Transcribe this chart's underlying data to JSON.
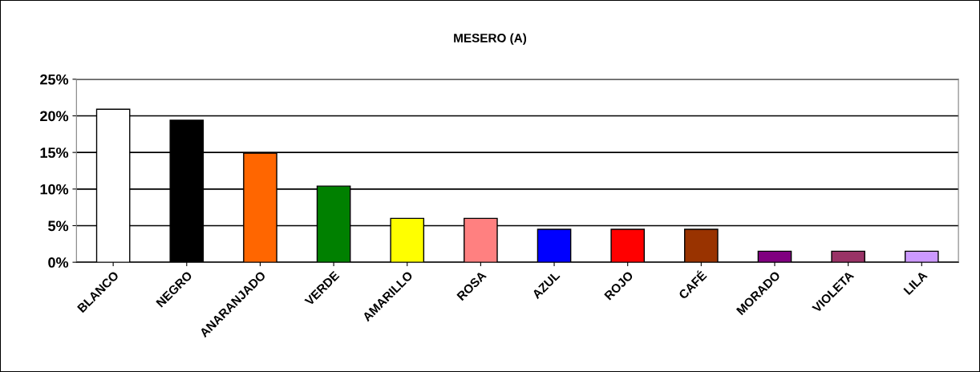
{
  "chart_data": {
    "type": "bar",
    "title": "MESERO (A)",
    "categories": [
      "BLANCO",
      "NEGRO",
      "ANARANJADO",
      "VERDE",
      "AMARILLO",
      "ROSA",
      "AZUL",
      "ROJO",
      "CAFÉ",
      "MORADO",
      "VIOLETA",
      "LILA"
    ],
    "values": [
      20.9,
      19.4,
      14.9,
      10.4,
      6.0,
      6.0,
      4.5,
      4.5,
      4.5,
      1.5,
      1.5,
      1.5
    ],
    "colors": [
      "#ffffff",
      "#000000",
      "#ff6600",
      "#008000",
      "#ffff00",
      "#ff8080",
      "#0000ff",
      "#ff0000",
      "#993300",
      "#800080",
      "#993366",
      "#cc99ff"
    ],
    "ylim": [
      0,
      25
    ],
    "yticks": [
      {
        "value": 0,
        "label": "0%"
      },
      {
        "value": 5,
        "label": "5%"
      },
      {
        "value": 10,
        "label": "10%"
      },
      {
        "value": 15,
        "label": "15%"
      },
      {
        "value": 20,
        "label": "20%"
      },
      {
        "value": 25,
        "label": "25%"
      }
    ],
    "grid": "y",
    "legend": false
  }
}
